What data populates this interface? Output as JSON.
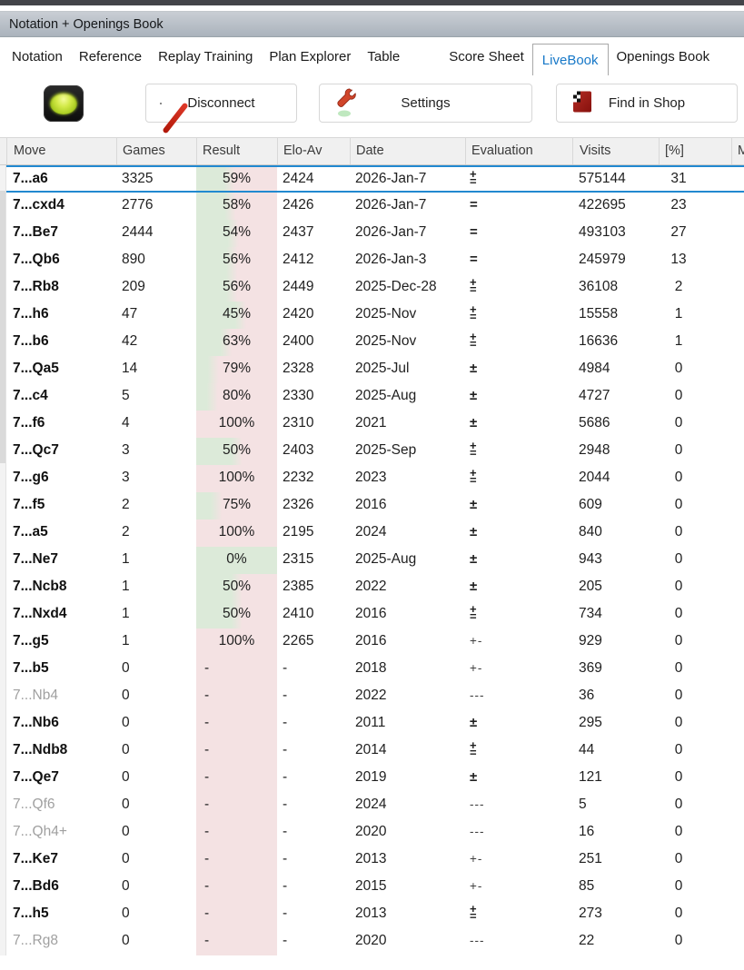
{
  "window": {
    "title": "Notation + Openings Book"
  },
  "tabs": [
    {
      "label": "Notation",
      "active": false
    },
    {
      "label": "Reference",
      "active": false
    },
    {
      "label": "Replay Training",
      "active": false
    },
    {
      "label": "Plan Explorer",
      "active": false
    },
    {
      "label": "Table",
      "active": false
    },
    {
      "label": "Score Sheet",
      "active": false
    },
    {
      "label": "LiveBook",
      "active": true
    },
    {
      "label": "Openings Book",
      "active": false
    }
  ],
  "toolbar": {
    "status_light": "green",
    "disconnect_label": "Disconnect",
    "settings_label": "Settings",
    "shop_label": "Find in Shop",
    "icons": [
      "status-light-icon",
      "disconnect-globe-icon",
      "wrench-icon",
      "shop-checkered-icon"
    ]
  },
  "colors": {
    "result_green": "#dcead9",
    "result_pink": "#f4e2e3",
    "selection_blue": "#2189d0",
    "active_tab_blue": "#1778c8"
  },
  "table": {
    "columns": [
      "Move",
      "Games",
      "Result",
      "Elo-Av",
      "Date",
      "Evaluation",
      "Visits",
      "[%]",
      "M"
    ],
    "selected_row_index": 0,
    "rows": [
      {
        "move": "7...a6",
        "games": "3325",
        "result": "59%",
        "elo_av": "2424",
        "date": "2026-Jan-7",
        "evaluation": "⩲",
        "visits": "575144",
        "pct": "31",
        "grayed": false
      },
      {
        "move": "7...cxd4",
        "games": "2776",
        "result": "58%",
        "elo_av": "2426",
        "date": "2026-Jan-7",
        "evaluation": "=",
        "visits": "422695",
        "pct": "23",
        "grayed": false
      },
      {
        "move": "7...Be7",
        "games": "2444",
        "result": "54%",
        "elo_av": "2437",
        "date": "2026-Jan-7",
        "evaluation": "=",
        "visits": "493103",
        "pct": "27",
        "grayed": false
      },
      {
        "move": "7...Qb6",
        "games": "890",
        "result": "56%",
        "elo_av": "2412",
        "date": "2026-Jan-3",
        "evaluation": "=",
        "visits": "245979",
        "pct": "13",
        "grayed": false
      },
      {
        "move": "7...Rb8",
        "games": "209",
        "result": "56%",
        "elo_av": "2449",
        "date": "2025-Dec-28",
        "evaluation": "⩲",
        "visits": "36108",
        "pct": "2",
        "grayed": false
      },
      {
        "move": "7...h6",
        "games": "47",
        "result": "45%",
        "elo_av": "2420",
        "date": "2025-Nov",
        "evaluation": "⩲",
        "visits": "15558",
        "pct": "1",
        "grayed": false
      },
      {
        "move": "7...b6",
        "games": "42",
        "result": "63%",
        "elo_av": "2400",
        "date": "2025-Nov",
        "evaluation": "⩲",
        "visits": "16636",
        "pct": "1",
        "grayed": false
      },
      {
        "move": "7...Qa5",
        "games": "14",
        "result": "79%",
        "elo_av": "2328",
        "date": "2025-Jul",
        "evaluation": "±",
        "visits": "4984",
        "pct": "0",
        "grayed": false
      },
      {
        "move": "7...c4",
        "games": "5",
        "result": "80%",
        "elo_av": "2330",
        "date": "2025-Aug",
        "evaluation": "±",
        "visits": "4727",
        "pct": "0",
        "grayed": false
      },
      {
        "move": "7...f6",
        "games": "4",
        "result": "100%",
        "elo_av": "2310",
        "date": "2021",
        "evaluation": "±",
        "visits": "5686",
        "pct": "0",
        "grayed": false
      },
      {
        "move": "7...Qc7",
        "games": "3",
        "result": "50%",
        "elo_av": "2403",
        "date": "2025-Sep",
        "evaluation": "⩲",
        "visits": "2948",
        "pct": "0",
        "grayed": false
      },
      {
        "move": "7...g6",
        "games": "3",
        "result": "100%",
        "elo_av": "2232",
        "date": "2023",
        "evaluation": "⩲",
        "visits": "2044",
        "pct": "0",
        "grayed": false
      },
      {
        "move": "7...f5",
        "games": "2",
        "result": "75%",
        "elo_av": "2326",
        "date": "2016",
        "evaluation": "±",
        "visits": "609",
        "pct": "0",
        "grayed": false
      },
      {
        "move": "7...a5",
        "games": "2",
        "result": "100%",
        "elo_av": "2195",
        "date": "2024",
        "evaluation": "±",
        "visits": "840",
        "pct": "0",
        "grayed": false
      },
      {
        "move": "7...Ne7",
        "games": "1",
        "result": "0%",
        "elo_av": "2315",
        "date": "2025-Aug",
        "evaluation": "±",
        "visits": "943",
        "pct": "0",
        "grayed": false
      },
      {
        "move": "7...Ncb8",
        "games": "1",
        "result": "50%",
        "elo_av": "2385",
        "date": "2022",
        "evaluation": "±",
        "visits": "205",
        "pct": "0",
        "grayed": false
      },
      {
        "move": "7...Nxd4",
        "games": "1",
        "result": "50%",
        "elo_av": "2410",
        "date": "2016",
        "evaluation": "⩲",
        "visits": "734",
        "pct": "0",
        "grayed": false
      },
      {
        "move": "7...g5",
        "games": "1",
        "result": "100%",
        "elo_av": "2265",
        "date": "2016",
        "evaluation": "+-",
        "visits": "929",
        "pct": "0",
        "grayed": false
      },
      {
        "move": "7...b5",
        "games": "0",
        "result": "-",
        "elo_av": "-",
        "date": "2018",
        "evaluation": "+-",
        "visits": "369",
        "pct": "0",
        "grayed": false
      },
      {
        "move": "7...Nb4",
        "games": "0",
        "result": "-",
        "elo_av": "-",
        "date": "2022",
        "evaluation": "---",
        "visits": "36",
        "pct": "0",
        "grayed": true
      },
      {
        "move": "7...Nb6",
        "games": "0",
        "result": "-",
        "elo_av": "-",
        "date": "2011",
        "evaluation": "±",
        "visits": "295",
        "pct": "0",
        "grayed": false
      },
      {
        "move": "7...Ndb8",
        "games": "0",
        "result": "-",
        "elo_av": "-",
        "date": "2014",
        "evaluation": "⩲",
        "visits": "44",
        "pct": "0",
        "grayed": false
      },
      {
        "move": "7...Qe7",
        "games": "0",
        "result": "-",
        "elo_av": "-",
        "date": "2019",
        "evaluation": "±",
        "visits": "121",
        "pct": "0",
        "grayed": false
      },
      {
        "move": "7...Qf6",
        "games": "0",
        "result": "-",
        "elo_av": "-",
        "date": "2024",
        "evaluation": "---",
        "visits": "5",
        "pct": "0",
        "grayed": true
      },
      {
        "move": "7...Qh4+",
        "games": "0",
        "result": "-",
        "elo_av": "-",
        "date": "2020",
        "evaluation": "---",
        "visits": "16",
        "pct": "0",
        "grayed": true
      },
      {
        "move": "7...Ke7",
        "games": "0",
        "result": "-",
        "elo_av": "-",
        "date": "2013",
        "evaluation": "+-",
        "visits": "251",
        "pct": "0",
        "grayed": false
      },
      {
        "move": "7...Bd6",
        "games": "0",
        "result": "-",
        "elo_av": "-",
        "date": "2015",
        "evaluation": "+-",
        "visits": "85",
        "pct": "0",
        "grayed": false
      },
      {
        "move": "7...h5",
        "games": "0",
        "result": "-",
        "elo_av": "-",
        "date": "2013",
        "evaluation": "⩲",
        "visits": "273",
        "pct": "0",
        "grayed": false
      },
      {
        "move": "7...Rg8",
        "games": "0",
        "result": "-",
        "elo_av": "-",
        "date": "2020",
        "evaluation": "---",
        "visits": "22",
        "pct": "0",
        "grayed": true
      }
    ]
  }
}
